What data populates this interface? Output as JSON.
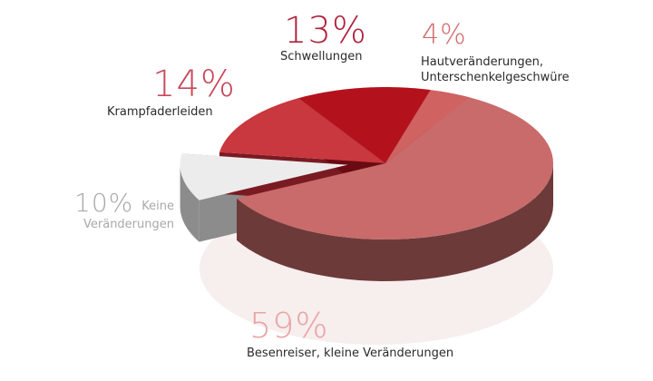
{
  "chart_data": {
    "type": "pie",
    "style": "3d-exploded",
    "slices": [
      {
        "label": "Besenreiser, kleine Veränderungen",
        "percent_label": "59%",
        "value": 59,
        "top_color": "#c96b6b",
        "side_color": "#6d3a3a",
        "label_color": "#eaa3a3"
      },
      {
        "label": "Keine Veränderungen",
        "percent_label": "10%",
        "value": 10,
        "top_color": "#ececec",
        "side_color": "#8c8c8c",
        "label_color": "#a8a8a8",
        "exploded": true
      },
      {
        "label": "Krampfaderleiden",
        "percent_label": "14%",
        "value": 14,
        "top_color": "#c9373f",
        "side_color": "#7a1a22",
        "label_color": "#c9485a"
      },
      {
        "label": "Schwellungen",
        "percent_label": "13%",
        "value": 13,
        "top_color": "#b3121d",
        "side_color": "#6a0a12",
        "label_color": "#b0223c"
      },
      {
        "label": "Hautveränderungen, Unterschenkelgeschwüre",
        "label_lines": [
          "Hautveränderungen,",
          "Unterschenkelgeschwüre"
        ],
        "percent_label": "4%",
        "value": 4,
        "top_color": "#d06262",
        "side_color": "#7a2e2e",
        "label_color": "#d06a6a"
      }
    ]
  }
}
